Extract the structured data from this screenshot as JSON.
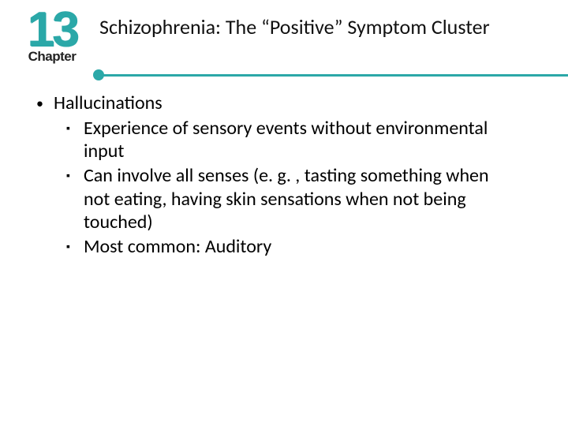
{
  "chapter": {
    "number": "13",
    "label": "Chapter",
    "number_color": "#2ba8a8",
    "label_color": "#222222"
  },
  "title": "Schizophrenia: The “Positive” Symptom Cluster",
  "rule": {
    "color": "#2ba8a8"
  },
  "bullets": [
    {
      "text": "Hallucinations",
      "children": [
        {
          "text": "Experience of sensory events without environmental input"
        },
        {
          "text": "Can involve all senses (e. g. , tasting something when not eating, having skin sensations when not being touched)"
        },
        {
          "text": "Most common: Auditory"
        }
      ]
    }
  ],
  "markers": {
    "level1": "•",
    "level2": "▪"
  },
  "colors": {
    "background": "#ffffff",
    "text": "#000000",
    "accent": "#2ba8a8"
  },
  "typography": {
    "title_fontsize": 26,
    "body_fontsize": 24,
    "chapter_number_fontsize": 62,
    "chapter_label_fontsize": 17
  }
}
